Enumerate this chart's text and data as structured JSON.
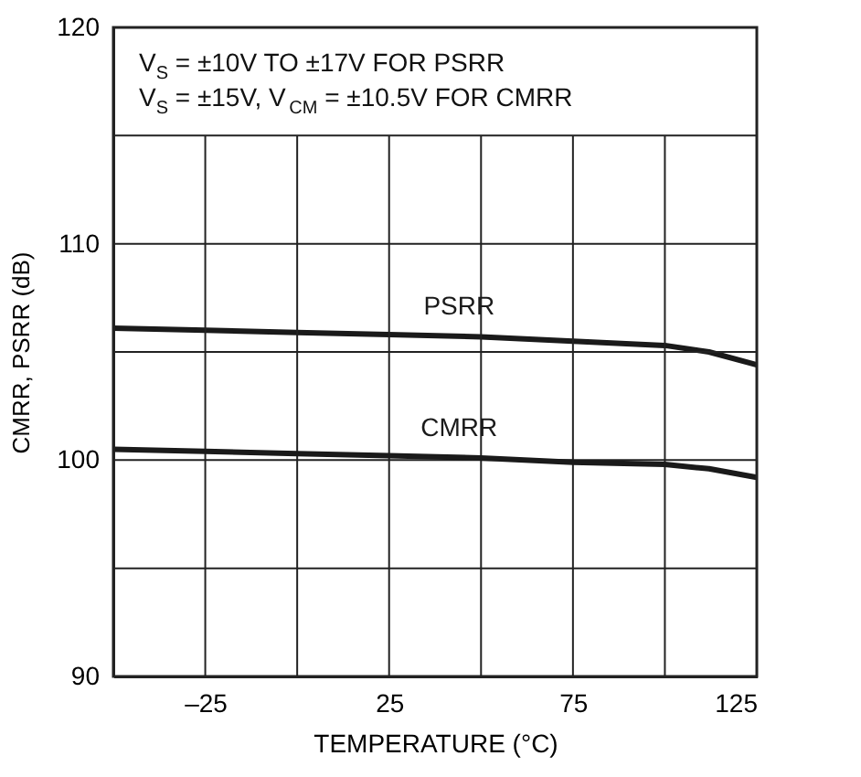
{
  "chart_data": {
    "type": "line",
    "xlabel": "TEMPERATURE (°C)",
    "ylabel": "CMRR, PSRR (dB)",
    "x": [
      -50,
      -25,
      0,
      25,
      50,
      75,
      100,
      112,
      125
    ],
    "series": [
      {
        "name": "PSRR",
        "color": "#1a1a1a",
        "values": [
          106.1,
          106.0,
          105.9,
          105.8,
          105.7,
          105.5,
          105.3,
          105.0,
          104.4
        ]
      },
      {
        "name": "CMRR",
        "color": "#1a1a1a",
        "values": [
          100.5,
          100.4,
          100.3,
          100.2,
          100.1,
          99.9,
          99.8,
          99.6,
          99.2
        ]
      }
    ],
    "annotations": [
      "V$_{S}$ = ±10V TO ±17V FOR PSRR",
      "V$_{S}$ = ±15V, V$_{CM}$ = ±10.5V FOR CMRR"
    ],
    "xlim": [
      -50,
      125
    ],
    "xticks": [
      {
        "value": -25,
        "label": "–25"
      },
      {
        "value": 0,
        "label": null
      },
      25,
      {
        "value": 50,
        "label": null
      },
      75,
      {
        "value": 100,
        "label": null
      },
      125
    ],
    "ylim": [
      90,
      120
    ],
    "yticks": [
      90,
      {
        "value": 95,
        "label": null
      },
      100,
      {
        "value": 105,
        "label": null
      },
      110,
      {
        "value": 115,
        "label": null
      },
      120
    ],
    "grid": true,
    "legend": false,
    "marker": "none",
    "line_style": "solid"
  }
}
